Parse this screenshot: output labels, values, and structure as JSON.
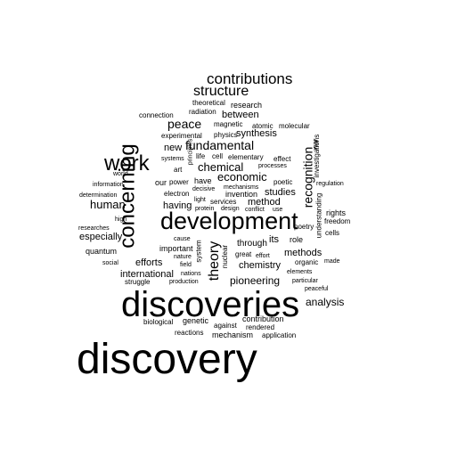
{
  "colors": {
    "background": "#ffffff",
    "text": "#000000"
  },
  "words": [
    "discovery",
    "discoveries",
    "development",
    "concerning",
    "work",
    "contributions",
    "structure",
    "theory",
    "recognition",
    "peace",
    "fundamental",
    "economic",
    "chemical",
    "human",
    "analysis",
    "pioneering",
    "synthesis",
    "efforts",
    "international",
    "especially",
    "method",
    "studies",
    "methods",
    "chemistry",
    "new",
    "between",
    "having",
    "its",
    "through",
    "important",
    "quantum",
    "research",
    "contribution",
    "genetic",
    "mechanism",
    "biological",
    "reactions",
    "against",
    "rendered",
    "application",
    "role",
    "organic",
    "rights",
    "cells",
    "freedom",
    "understanding",
    "poetry",
    "investigations",
    "regulation",
    "war",
    "molecular",
    "atomic",
    "magnetic",
    "physics",
    "theoretical",
    "radiation",
    "connection",
    "experimental",
    "cell",
    "elementary",
    "effect",
    "poetic",
    "processes",
    "systems",
    "principles",
    "life",
    "art",
    "our",
    "power",
    "have",
    "decisive",
    "mechanisms",
    "invention",
    "services",
    "conflict",
    "use",
    "protein",
    "design",
    "electron",
    "light",
    "information",
    "determination",
    "world",
    "high",
    "researches",
    "social",
    "cause",
    "nature",
    "field",
    "nations",
    "production",
    "struggle",
    "system",
    "nuclear",
    "great",
    "effort",
    "elements",
    "particular",
    "peaceful",
    "made"
  ]
}
